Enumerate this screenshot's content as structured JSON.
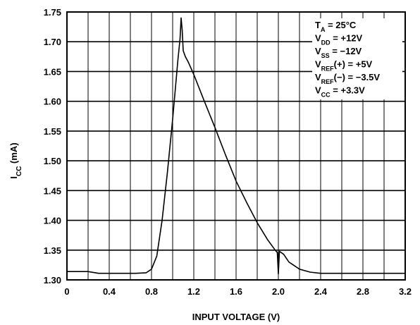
{
  "chart_data": {
    "type": "line",
    "title": "",
    "xlabel": "INPUT VOLTAGE (V)",
    "ylabel": {
      "main": "I",
      "sub": "CC",
      "rest": " (mA)"
    },
    "xlim": [
      0,
      3.2
    ],
    "ylim": [
      1.3,
      1.75
    ],
    "x_ticks": [
      "0",
      "0.4",
      "0.8",
      "1.2",
      "1.6",
      "2.0",
      "2.4",
      "2.8",
      "3.2"
    ],
    "x_tick_values": [
      0,
      0.4,
      0.8,
      1.2,
      1.6,
      2.0,
      2.4,
      2.8,
      3.2
    ],
    "y_ticks": [
      "1.30",
      "1.35",
      "1.40",
      "1.45",
      "1.50",
      "1.55",
      "1.60",
      "1.65",
      "1.70",
      "1.75"
    ],
    "y_tick_values": [
      1.3,
      1.35,
      1.4,
      1.45,
      1.5,
      1.55,
      1.6,
      1.65,
      1.7,
      1.75
    ],
    "grid": true,
    "conditions": [
      {
        "main": "T",
        "sub": "A",
        "rest": " = 25°C"
      },
      {
        "main": "V",
        "sub": "DD",
        "rest": " = +12V"
      },
      {
        "main": "V",
        "sub": "SS",
        "rest": " = −12V"
      },
      {
        "main": "V",
        "sub": "REF",
        "rest": "(+) = +5V"
      },
      {
        "main": "V",
        "sub": "REF",
        "rest": "(−) = −3.5V"
      },
      {
        "main": "V",
        "sub": "CC",
        "rest": " = +3.3V"
      }
    ],
    "series": [
      {
        "x": [
          0.0,
          0.2,
          0.3,
          0.4,
          0.55,
          0.65,
          0.75,
          0.8,
          0.85,
          0.9,
          0.95,
          1.0,
          1.03,
          1.05,
          1.07,
          1.08,
          1.09,
          1.1,
          1.12,
          1.15,
          1.2,
          1.3,
          1.4,
          1.5,
          1.6,
          1.7,
          1.8,
          1.9,
          1.97,
          1.99,
          2.0,
          2.01,
          2.05,
          2.1,
          2.2,
          2.3,
          2.4,
          2.6,
          2.8,
          3.0,
          3.2
        ],
        "y": [
          1.314,
          1.314,
          1.311,
          1.311,
          1.311,
          1.311,
          1.312,
          1.318,
          1.34,
          1.4,
          1.48,
          1.57,
          1.63,
          1.67,
          1.705,
          1.74,
          1.72,
          1.685,
          1.675,
          1.665,
          1.645,
          1.6,
          1.556,
          1.51,
          1.466,
          1.43,
          1.396,
          1.367,
          1.35,
          1.346,
          1.31,
          1.348,
          1.343,
          1.33,
          1.318,
          1.313,
          1.311,
          1.311,
          1.311,
          1.311,
          1.311
        ]
      }
    ],
    "line_color": "#000000",
    "grid_color": "#000000"
  }
}
